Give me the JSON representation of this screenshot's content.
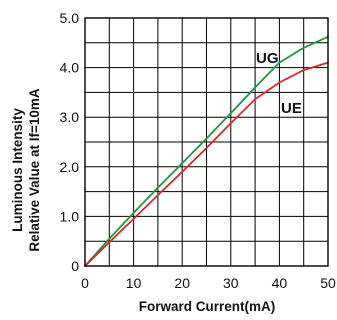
{
  "chart_data": {
    "type": "line",
    "title": "",
    "xlabel": "Forward Current(mA)",
    "ylabel": [
      "Luminous Intensity",
      "Relative Value at If=10mA"
    ],
    "xlim": [
      0,
      50
    ],
    "ylim": [
      0,
      5.0
    ],
    "x_ticks": [
      "0",
      "10",
      "20",
      "30",
      "40",
      "50"
    ],
    "y_ticks": [
      "0",
      "1.0",
      "2.0",
      "3.0",
      "4.0",
      "5.0"
    ],
    "grid": true,
    "series": [
      {
        "name": "UG",
        "color": "#1a9a3c",
        "x": [
          0,
          5,
          10,
          15,
          20,
          25,
          30,
          35,
          40,
          45,
          50
        ],
        "y": [
          0,
          0.55,
          1.07,
          1.58,
          2.07,
          2.57,
          3.08,
          3.6,
          4.1,
          4.4,
          4.62
        ]
      },
      {
        "name": "UE",
        "color": "#d42a2a",
        "x": [
          0,
          5,
          10,
          15,
          20,
          25,
          30,
          35,
          40,
          45,
          50
        ],
        "y": [
          0,
          0.48,
          0.95,
          1.43,
          1.9,
          2.38,
          2.88,
          3.36,
          3.7,
          3.95,
          4.1
        ]
      }
    ]
  }
}
